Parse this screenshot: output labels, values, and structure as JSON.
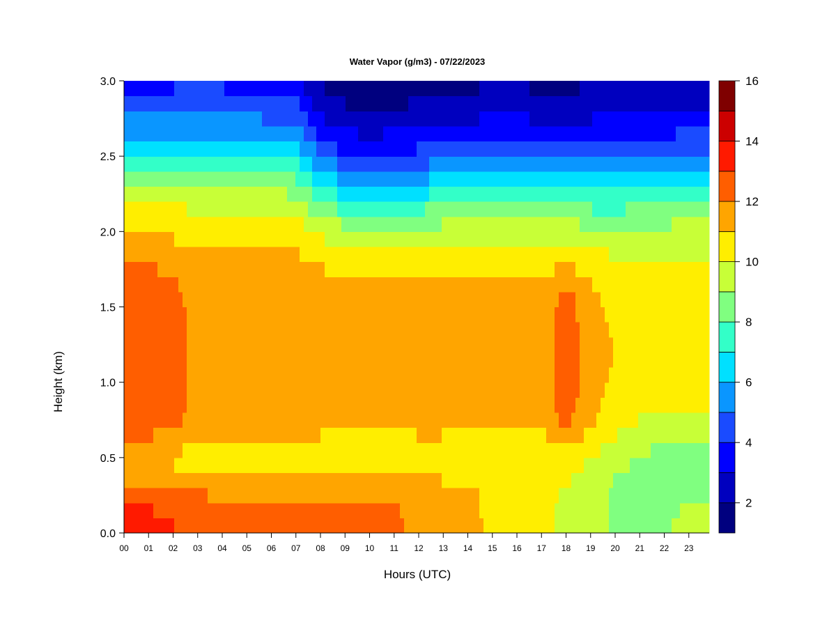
{
  "chart_data": {
    "type": "heatmap",
    "title": "Water Vapor (g/m3) - 07/22/2023",
    "xlabel": "Hours (UTC)",
    "ylabel": "Height (km)",
    "xlim": [
      0,
      24
    ],
    "ylim": [
      0.0,
      3.0
    ],
    "x_ticks": [
      "00",
      "01",
      "02",
      "03",
      "04",
      "05",
      "06",
      "07",
      "08",
      "09",
      "10",
      "11",
      "12",
      "13",
      "14",
      "15",
      "16",
      "17",
      "18",
      "19",
      "20",
      "21",
      "22",
      "23"
    ],
    "y_ticks": [
      "0.0",
      "0.5",
      "1.0",
      "1.5",
      "2.0",
      "2.5",
      "3.0"
    ],
    "colorbar": {
      "min": 1,
      "max": 16,
      "ticks": [
        "2",
        "4",
        "6",
        "8",
        "10",
        "12",
        "14",
        "16"
      ],
      "levels": [
        {
          "range": [
            1,
            2
          ],
          "color": "#00007f"
        },
        {
          "range": [
            2,
            3
          ],
          "color": "#0000bf"
        },
        {
          "range": [
            3,
            4
          ],
          "color": "#0000ff"
        },
        {
          "range": [
            4,
            5
          ],
          "color": "#1a4bff"
        },
        {
          "range": [
            5,
            6
          ],
          "color": "#0a96ff"
        },
        {
          "range": [
            6,
            7
          ],
          "color": "#00e0ff"
        },
        {
          "range": [
            7,
            8
          ],
          "color": "#33ffc8"
        },
        {
          "range": [
            8,
            9
          ],
          "color": "#80ff80"
        },
        {
          "range": [
            9,
            10
          ],
          "color": "#c8ff37"
        },
        {
          "range": [
            10,
            11
          ],
          "color": "#ffee00"
        },
        {
          "range": [
            11,
            12
          ],
          "color": "#ffa500"
        },
        {
          "range": [
            12,
            13
          ],
          "color": "#ff5e00"
        },
        {
          "range": [
            13,
            14
          ],
          "color": "#ff1a00"
        },
        {
          "range": [
            14,
            15
          ],
          "color": "#cc0000"
        },
        {
          "range": [
            15,
            16
          ],
          "color": "#7f0000"
        }
      ]
    },
    "heights_km": [
      0.0,
      0.1,
      0.2,
      0.3,
      0.4,
      0.5,
      0.6,
      0.7,
      0.8,
      0.9,
      1.0,
      1.1,
      1.2,
      1.3,
      1.4,
      1.5,
      1.6,
      1.7,
      1.8,
      1.9,
      2.0,
      2.1,
      2.2,
      2.3,
      2.4,
      2.5,
      2.6,
      2.7,
      2.8,
      2.9,
      3.0
    ],
    "profiles": [
      {
        "hour": 0.0,
        "values": [
          13.5,
          13.3,
          12.8,
          12.0,
          11.5,
          11.0,
          11.8,
          12.3,
          12.5,
          12.6,
          12.6,
          12.6,
          12.6,
          12.6,
          12.6,
          12.5,
          12.5,
          12.3,
          12.0,
          11.5,
          11.0,
          10.5,
          9.8,
          9.0,
          8.0,
          7.0,
          6.2,
          5.5,
          4.8,
          4.2,
          3.8
        ]
      },
      {
        "hour": 1.0,
        "values": [
          13.6,
          13.4,
          12.8,
          12.0,
          11.5,
          11.0,
          11.8,
          12.3,
          12.5,
          12.6,
          12.6,
          12.6,
          12.6,
          12.6,
          12.6,
          12.5,
          12.5,
          12.3,
          12.0,
          11.6,
          11.0,
          10.5,
          9.8,
          9.0,
          8.0,
          7.0,
          6.2,
          5.4,
          4.7,
          4.0,
          3.7
        ]
      },
      {
        "hour": 2.0,
        "values": [
          13.2,
          12.8,
          12.5,
          12.0,
          11.2,
          10.8,
          11.5,
          12.2,
          12.4,
          12.5,
          12.5,
          12.5,
          12.5,
          12.5,
          12.5,
          12.4,
          12.3,
          12.0,
          11.6,
          11.2,
          10.8,
          10.4,
          9.8,
          9.0,
          8.0,
          7.0,
          6.2,
          5.5,
          4.8,
          4.2,
          3.8
        ]
      },
      {
        "hour": 3.0,
        "values": [
          12.6,
          12.6,
          12.5,
          11.6,
          10.8,
          10.5,
          10.8,
          11.4,
          11.6,
          11.6,
          11.6,
          11.6,
          11.6,
          11.6,
          11.6,
          11.6,
          11.6,
          11.6,
          11.4,
          11.0,
          10.6,
          10.2,
          9.6,
          8.8,
          7.8,
          6.8,
          6.0,
          5.4,
          4.8,
          4.2,
          3.8
        ]
      },
      {
        "hour": 4.0,
        "values": [
          12.5,
          12.5,
          12.3,
          11.5,
          10.8,
          10.5,
          10.6,
          11.4,
          11.6,
          11.6,
          11.6,
          11.6,
          11.6,
          11.6,
          11.6,
          11.6,
          11.6,
          11.6,
          11.4,
          11.0,
          10.6,
          10.2,
          9.6,
          8.8,
          7.8,
          6.9,
          6.1,
          5.5,
          4.8,
          4.2,
          3.8
        ]
      },
      {
        "hour": 5.0,
        "values": [
          12.5,
          12.5,
          12.3,
          11.5,
          10.8,
          10.5,
          10.6,
          11.4,
          11.6,
          11.6,
          11.6,
          11.6,
          11.6,
          11.6,
          11.6,
          11.6,
          11.6,
          11.6,
          11.4,
          11.0,
          10.6,
          10.2,
          9.6,
          8.8,
          7.8,
          6.9,
          6.1,
          5.4,
          4.8,
          4.2,
          3.7
        ]
      },
      {
        "hour": 6.0,
        "values": [
          12.5,
          12.5,
          12.3,
          11.5,
          10.8,
          10.5,
          10.6,
          11.4,
          11.6,
          11.6,
          11.6,
          11.6,
          11.6,
          11.6,
          11.6,
          11.6,
          11.6,
          11.6,
          11.4,
          11.0,
          10.6,
          10.2,
          9.6,
          8.8,
          7.8,
          6.8,
          6.0,
          5.3,
          4.6,
          4.0,
          3.5
        ]
      },
      {
        "hour": 7.0,
        "values": [
          12.5,
          12.5,
          12.3,
          11.5,
          10.8,
          10.5,
          10.6,
          11.4,
          11.6,
          11.6,
          11.6,
          11.6,
          11.6,
          11.6,
          11.6,
          11.6,
          11.6,
          11.6,
          11.3,
          10.9,
          10.5,
          10.0,
          9.3,
          8.5,
          7.6,
          6.7,
          5.9,
          5.2,
          4.5,
          3.8,
          3.3
        ]
      },
      {
        "hour": 8.0,
        "values": [
          12.6,
          12.6,
          12.3,
          11.5,
          10.8,
          10.5,
          10.6,
          11.4,
          11.6,
          11.6,
          11.6,
          11.6,
          11.6,
          11.6,
          11.6,
          11.6,
          11.5,
          11.3,
          10.8,
          10.4,
          9.8,
          9.0,
          8.0,
          7.0,
          6.0,
          5.0,
          4.2,
          3.4,
          2.8,
          2.2,
          1.9
        ]
      },
      {
        "hour": 9.0,
        "values": [
          12.5,
          12.5,
          12.2,
          11.5,
          10.8,
          10.5,
          10.6,
          11.3,
          11.5,
          11.5,
          11.5,
          11.5,
          11.5,
          11.5,
          11.5,
          11.4,
          11.2,
          10.9,
          10.5,
          10.0,
          9.4,
          8.4,
          7.2,
          6.2,
          5.2,
          4.2,
          3.4,
          2.7,
          2.2,
          1.8,
          1.6
        ]
      },
      {
        "hour": 10.0,
        "values": [
          12.5,
          12.5,
          12.2,
          11.5,
          10.8,
          10.5,
          10.6,
          11.3,
          11.5,
          11.5,
          11.5,
          11.5,
          11.5,
          11.5,
          11.5,
          11.4,
          11.2,
          10.9,
          10.4,
          9.8,
          9.2,
          8.2,
          7.0,
          6.0,
          5.0,
          4.0,
          3.3,
          2.6,
          2.1,
          1.7,
          1.5
        ]
      },
      {
        "hour": 11.0,
        "values": [
          12.3,
          12.3,
          12.0,
          11.5,
          10.8,
          10.5,
          10.6,
          11.3,
          11.5,
          11.5,
          11.5,
          11.5,
          11.5,
          11.5,
          11.5,
          11.4,
          11.2,
          10.9,
          10.5,
          10.0,
          9.3,
          8.3,
          7.1,
          6.1,
          5.1,
          4.1,
          3.4,
          2.7,
          2.1,
          1.7,
          1.5
        ]
      },
      {
        "hour": 12.0,
        "values": [
          11.6,
          11.6,
          11.5,
          11.2,
          10.8,
          10.6,
          10.7,
          11.3,
          11.5,
          11.5,
          11.5,
          11.5,
          11.5,
          11.5,
          11.5,
          11.4,
          11.2,
          10.9,
          10.5,
          10.0,
          9.4,
          8.5,
          7.4,
          6.4,
          5.4,
          4.4,
          3.6,
          2.9,
          2.3,
          1.9,
          1.6
        ]
      },
      {
        "hour": 13.0,
        "values": [
          11.5,
          11.5,
          11.5,
          11.2,
          10.8,
          10.5,
          10.7,
          11.3,
          11.5,
          11.5,
          11.5,
          11.5,
          11.5,
          11.5,
          11.5,
          11.4,
          11.2,
          10.9,
          10.5,
          10.0,
          9.4,
          8.6,
          7.6,
          6.6,
          5.6,
          4.6,
          3.8,
          3.1,
          2.5,
          2.0,
          1.7
        ]
      },
      {
        "hour": 14.0,
        "values": [
          11.5,
          11.5,
          11.4,
          11.1,
          10.7,
          10.3,
          10.6,
          11.3,
          11.5,
          11.5,
          11.5,
          11.5,
          11.5,
          11.5,
          11.5,
          11.4,
          11.2,
          10.9,
          10.6,
          10.2,
          9.6,
          8.8,
          7.8,
          6.8,
          5.8,
          4.8,
          4.0,
          3.3,
          2.6,
          2.1,
          1.8
        ]
      },
      {
        "hour": 15.0,
        "values": [
          10.6,
          10.6,
          10.6,
          10.7,
          10.6,
          10.3,
          10.6,
          11.3,
          11.5,
          11.5,
          11.5,
          11.5,
          11.5,
          11.5,
          11.5,
          11.4,
          11.2,
          10.9,
          10.6,
          10.2,
          9.6,
          8.8,
          7.8,
          6.8,
          5.8,
          4.9,
          4.1,
          3.4,
          2.7,
          2.2,
          1.9
        ]
      },
      {
        "hour": 16.0,
        "values": [
          10.5,
          10.5,
          10.5,
          10.6,
          10.5,
          10.2,
          10.6,
          11.3,
          11.5,
          11.5,
          11.5,
          11.5,
          11.5,
          11.5,
          11.5,
          11.4,
          11.2,
          10.9,
          10.6,
          10.2,
          9.6,
          8.8,
          7.8,
          6.8,
          5.8,
          4.9,
          4.1,
          3.4,
          2.7,
          2.2,
          1.9
        ]
      },
      {
        "hour": 17.0,
        "values": [
          10.3,
          10.3,
          10.3,
          10.4,
          10.3,
          10.1,
          10.5,
          11.3,
          11.5,
          11.5,
          11.5,
          11.5,
          11.5,
          11.5,
          11.5,
          11.4,
          11.2,
          10.9,
          10.6,
          10.1,
          9.5,
          8.6,
          7.6,
          6.6,
          5.7,
          4.8,
          4.0,
          3.3,
          2.6,
          2.1,
          1.8
        ]
      },
      {
        "hour": 18.0,
        "values": [
          9.8,
          9.8,
          9.8,
          10.0,
          10.2,
          10.6,
          11.2,
          12.0,
          12.4,
          12.5,
          12.5,
          12.5,
          12.5,
          12.5,
          12.5,
          12.4,
          12.2,
          11.6,
          10.8,
          10.2,
          9.5,
          8.6,
          7.6,
          6.6,
          5.6,
          4.7,
          3.9,
          3.2,
          2.6,
          2.1,
          1.8
        ]
      },
      {
        "hour": 19.0,
        "values": [
          9.5,
          9.5,
          9.5,
          9.6,
          9.8,
          10.0,
          10.4,
          11.0,
          11.4,
          11.5,
          11.5,
          11.5,
          11.5,
          11.5,
          11.5,
          11.4,
          11.2,
          10.8,
          10.5,
          10.0,
          9.4,
          8.5,
          7.5,
          6.5,
          5.6,
          4.7,
          4.0,
          3.3,
          2.7,
          2.2,
          1.9
        ]
      },
      {
        "hour": 20.0,
        "values": [
          8.8,
          8.8,
          8.8,
          8.8,
          9.0,
          9.4,
          9.8,
          10.2,
          10.4,
          10.6,
          10.8,
          10.9,
          10.9,
          10.9,
          10.8,
          10.7,
          10.5,
          10.3,
          10.1,
          9.7,
          9.2,
          8.4,
          7.5,
          6.6,
          5.7,
          4.8,
          4.0,
          3.4,
          2.8,
          2.3,
          2.0
        ]
      },
      {
        "hour": 21.0,
        "values": [
          8.6,
          8.6,
          8.6,
          8.6,
          8.8,
          9.0,
          9.4,
          9.8,
          10.1,
          10.3,
          10.4,
          10.5,
          10.5,
          10.5,
          10.5,
          10.4,
          10.3,
          10.2,
          10.0,
          9.7,
          9.2,
          8.5,
          7.6,
          6.7,
          5.8,
          4.9,
          4.2,
          3.5,
          2.9,
          2.4,
          2.1
        ]
      },
      {
        "hour": 22.0,
        "values": [
          8.8,
          8.8,
          8.6,
          8.4,
          8.4,
          8.6,
          9.0,
          9.6,
          10.0,
          10.2,
          10.3,
          10.4,
          10.4,
          10.4,
          10.4,
          10.4,
          10.3,
          10.2,
          10.0,
          9.7,
          9.3,
          8.6,
          7.7,
          6.8,
          5.9,
          5.0,
          4.3,
          3.6,
          3.0,
          2.5,
          2.2
        ]
      },
      {
        "hour": 23.0,
        "values": [
          9.6,
          9.4,
          9.0,
          8.6,
          8.4,
          8.4,
          8.8,
          9.6,
          10.0,
          10.2,
          10.3,
          10.4,
          10.4,
          10.4,
          10.4,
          10.4,
          10.3,
          10.2,
          10.0,
          9.8,
          9.4,
          8.8,
          8.0,
          7.0,
          6.0,
          5.2,
          4.4,
          3.7,
          3.1,
          2.6,
          2.3
        ]
      },
      {
        "hour": 24.0,
        "values": [
          9.9,
          9.7,
          9.2,
          8.6,
          8.4,
          8.5,
          8.9,
          9.6,
          10.0,
          10.2,
          10.3,
          10.4,
          10.4,
          10.4,
          10.4,
          10.4,
          10.3,
          10.2,
          10.0,
          9.8,
          9.4,
          8.8,
          8.0,
          7.1,
          6.1,
          5.3,
          4.5,
          3.8,
          3.2,
          2.7,
          2.4
        ]
      }
    ]
  }
}
